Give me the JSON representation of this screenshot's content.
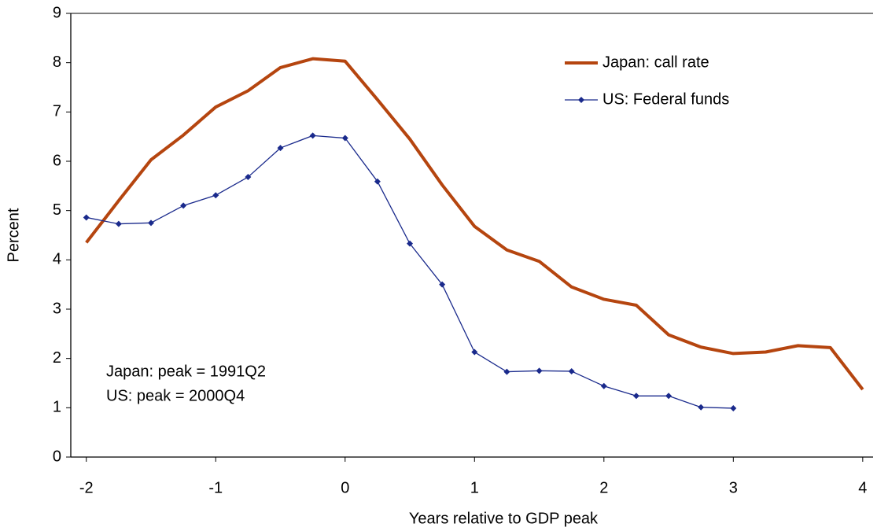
{
  "chart_data": {
    "type": "line",
    "x_label": "Years relative to GDP peak",
    "y_label": "Percent",
    "annotations": [
      "Japan: peak = 1991Q2",
      "US: peak = 2000Q4"
    ],
    "xlim": [
      -2.12,
      4.08
    ],
    "xticks": [
      -2,
      -1,
      0,
      1,
      2,
      3,
      4
    ],
    "ylim": [
      0,
      9
    ],
    "yticks": [
      0,
      1,
      2,
      3,
      4,
      5,
      6,
      7,
      8,
      9
    ],
    "legend": "top-right",
    "series": [
      {
        "name": "Japan: call rate",
        "color": "#b5450f",
        "markers": false,
        "x": [
          -2,
          -1.75,
          -1.5,
          -1.25,
          -1,
          -0.75,
          -0.5,
          -0.25,
          0,
          0.25,
          0.5,
          0.75,
          1,
          1.25,
          1.5,
          1.75,
          2,
          2.25,
          2.5,
          2.75,
          3,
          3.25,
          3.5,
          3.75,
          4
        ],
        "values": [
          4.35,
          5.2,
          6.03,
          6.53,
          7.1,
          7.43,
          7.9,
          8.08,
          8.03,
          7.25,
          6.45,
          5.52,
          4.68,
          4.2,
          3.97,
          3.45,
          3.2,
          3.08,
          2.48,
          2.23,
          2.1,
          2.13,
          2.26,
          2.22,
          1.37
        ]
      },
      {
        "name": "US: Federal funds",
        "color": "#1a2a8c",
        "markers": true,
        "x": [
          -2,
          -1.75,
          -1.5,
          -1.25,
          -1,
          -0.75,
          -0.5,
          -0.25,
          0,
          0.25,
          0.5,
          0.75,
          1,
          1.25,
          1.5,
          1.75,
          2,
          2.25,
          2.5,
          2.75,
          3
        ],
        "values": [
          4.86,
          4.73,
          4.75,
          5.1,
          5.31,
          5.68,
          6.27,
          6.52,
          6.47,
          5.59,
          4.33,
          3.5,
          2.13,
          1.73,
          1.75,
          1.74,
          1.44,
          1.24,
          1.24,
          1.01,
          0.99
        ]
      }
    ]
  }
}
